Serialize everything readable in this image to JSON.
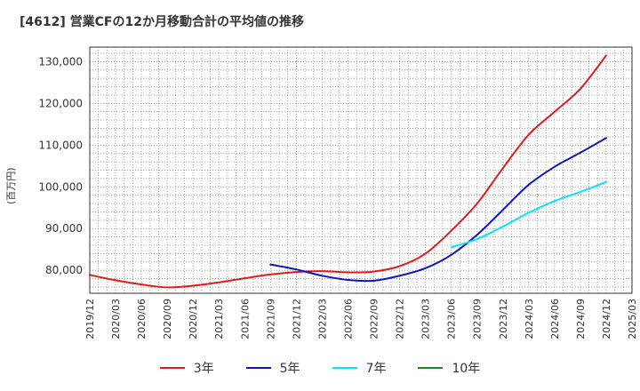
{
  "chart_data": {
    "type": "line",
    "title": "[4612]  営業CFの12か月移動合計の平均値の推移",
    "ylabel": "(百万円)",
    "xlabel": "",
    "grid": true,
    "legend_position": "bottom",
    "ylim": [
      74500,
      133500
    ],
    "y_ticks": [
      80000,
      90000,
      100000,
      110000,
      120000,
      130000
    ],
    "y_tick_labels": [
      "80,000",
      "90,000",
      "100,000",
      "110,000",
      "120,000",
      "130,000"
    ],
    "x_tick_labels": [
      "2019/12",
      "2020/03",
      "2020/06",
      "2020/09",
      "2020/12",
      "2021/03",
      "2021/06",
      "2021/09",
      "2021/12",
      "2022/03",
      "2022/06",
      "2022/09",
      "2022/12",
      "2023/03",
      "2023/06",
      "2023/09",
      "2023/12",
      "2024/03",
      "2024/06",
      "2024/09",
      "2024/12",
      "2025/03"
    ],
    "series": [
      {
        "name": "3年",
        "color": "#e31a1c",
        "x": [
          "2019/12",
          "2020/03",
          "2020/06",
          "2020/09",
          "2020/12",
          "2021/03",
          "2021/06",
          "2021/09",
          "2021/12",
          "2022/03",
          "2022/06",
          "2022/09",
          "2022/12",
          "2023/03",
          "2023/06",
          "2023/09",
          "2023/12",
          "2024/03",
          "2024/06",
          "2024/09",
          "2024/12"
        ],
        "values": [
          78900,
          77600,
          76600,
          75900,
          76300,
          77100,
          78100,
          79000,
          79600,
          79800,
          79500,
          79700,
          81000,
          84000,
          89500,
          96000,
          104500,
          112500,
          118000,
          123500,
          131500
        ]
      },
      {
        "name": "5年",
        "color": "#0a14c8",
        "x": [
          "2021/09",
          "2021/12",
          "2022/03",
          "2022/06",
          "2022/09",
          "2022/12",
          "2023/03",
          "2023/06",
          "2023/09",
          "2023/12",
          "2024/03",
          "2024/06",
          "2024/09",
          "2024/12"
        ],
        "values": [
          81400,
          80200,
          78700,
          77700,
          77500,
          78700,
          80500,
          83700,
          88500,
          94500,
          100500,
          104800,
          108200,
          111700
        ]
      },
      {
        "name": "7年",
        "color": "#00e5ff",
        "x": [
          "2023/06",
          "2023/09",
          "2023/12",
          "2024/03",
          "2024/06",
          "2024/09",
          "2024/12"
        ],
        "values": [
          85500,
          87500,
          90500,
          93800,
          96600,
          98800,
          101200
        ]
      },
      {
        "name": "10年",
        "color": "#1a8a1a",
        "x": [],
        "values": []
      }
    ]
  }
}
